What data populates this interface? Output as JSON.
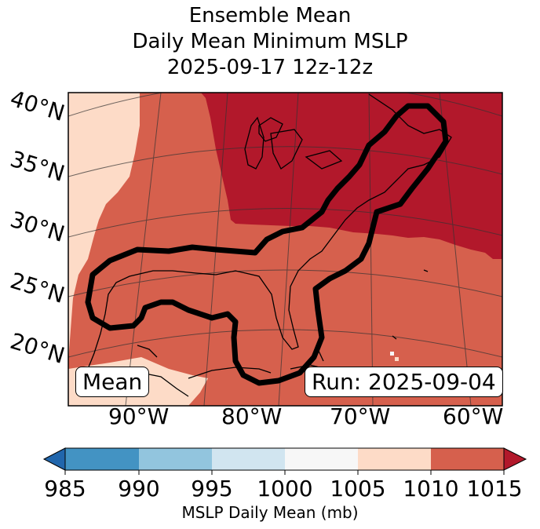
{
  "title": {
    "line1": "Ensemble Mean",
    "line2": "Daily Mean Minimum MSLP",
    "line3": "2025-09-17 12z-12z"
  },
  "map": {
    "lat_labels": [
      "40°N",
      "35°N",
      "30°N",
      "25°N",
      "20°N"
    ],
    "lon_labels": [
      "90°W",
      "80°W",
      "70°W",
      "60°W"
    ],
    "mean_box": "Mean",
    "run_box": "Run: 2025-09-04"
  },
  "colorbar": {
    "ticks": [
      "985",
      "990",
      "995",
      "1000",
      "1005",
      "1010",
      "1015"
    ],
    "label": "MSLP Daily Mean (mb)",
    "colors": {
      "below": "#2166ac",
      "c985_990": "#4393c3",
      "c990_995": "#92c5de",
      "c995_1000": "#d1e5f0",
      "c1000_1005": "#f7f7f7",
      "c1005_1010": "#fddbc7",
      "c1010_1015": "#d6604d",
      "above": "#b2182b"
    }
  },
  "chart_data": {
    "type": "heatmap",
    "title": "Ensemble Mean Daily Mean Minimum MSLP 2025-09-17 12z-12z",
    "variable": "MSLP Daily Mean (mb)",
    "levels": [
      985,
      990,
      995,
      1000,
      1005,
      1010,
      1015
    ],
    "extend": "both",
    "lat_range": [
      15,
      42
    ],
    "lon_range": [
      -97,
      -60
    ],
    "regions": [
      {
        "range": "1005-1010",
        "location": "western edge and southwest (Mexico / western Gulf margin)"
      },
      {
        "range": "1010-1015",
        "location": "Gulf of Mexico, Florida, Caribbean and western Atlantic"
      },
      {
        "range": ">1015",
        "location": "Great Lakes, New England and northwestern Atlantic"
      }
    ],
    "contour": "thick black outline around Gulf coast and US East Coast"
  }
}
